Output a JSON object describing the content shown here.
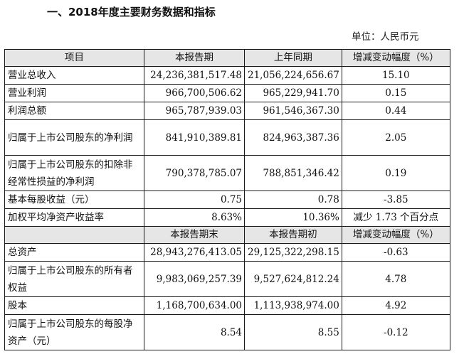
{
  "document": {
    "title": "一、2018年度主要财务数据和指标",
    "unit": "单位：人民币元"
  },
  "table": {
    "header1": {
      "item": "项目",
      "current": "本报告期",
      "prior": "上年同期",
      "change": "增减变动幅度（%）"
    },
    "rows1": [
      {
        "item": "营业总收入",
        "current": "24,236,381,517.48",
        "prior": "21,056,224,656.67",
        "change": "15.10"
      },
      {
        "item": "营业利润",
        "current": "966,700,506.62",
        "prior": "965,229,941.70",
        "change": "0.15"
      },
      {
        "item": "利润总额",
        "current": "965,787,939.03",
        "prior": "961,546,367.30",
        "change": "0.44"
      },
      {
        "item": "归属于上市公司股东的净利润",
        "current": "841,910,389.81",
        "prior": "824,963,387.36",
        "change": "2.05"
      },
      {
        "item": "归属于上市公司股东的扣除非经常性损益的净利润",
        "current": "790,378,785.07",
        "prior": "788,851,346.42",
        "change": "0.19"
      },
      {
        "item": "基本每股收益（元）",
        "current": "0.75",
        "prior": "0.78",
        "change": "-3.85"
      },
      {
        "item": "加权平均净资产收益率",
        "current": "8.63%",
        "prior": "10.36%",
        "change": "减少 1.73 个百分点"
      }
    ],
    "header2": {
      "item": "",
      "current": "本报告期末",
      "prior": "本报告期初",
      "change": "增减变动幅度（%）"
    },
    "rows2": [
      {
        "item": "总资产",
        "current": "28,943,276,413.05",
        "prior": "29,125,322,298.15",
        "change": "-0.63"
      },
      {
        "item": "归属于上市公司股东的所有者权益",
        "current": "9,983,069,257.39",
        "prior": "9,527,624,812.24",
        "change": "4.78"
      },
      {
        "item": "股本",
        "current": "1,168,700,634.00",
        "prior": "1,113,938,974.00",
        "change": "4.92"
      },
      {
        "item": "归属于上市公司股东的每股净资产（元）",
        "current": "8.54",
        "prior": "8.55",
        "change": "-0.12"
      }
    ]
  },
  "colors": {
    "header_bg": "#e6e6e6",
    "border": "#1a1a1a",
    "text": "#111111"
  }
}
